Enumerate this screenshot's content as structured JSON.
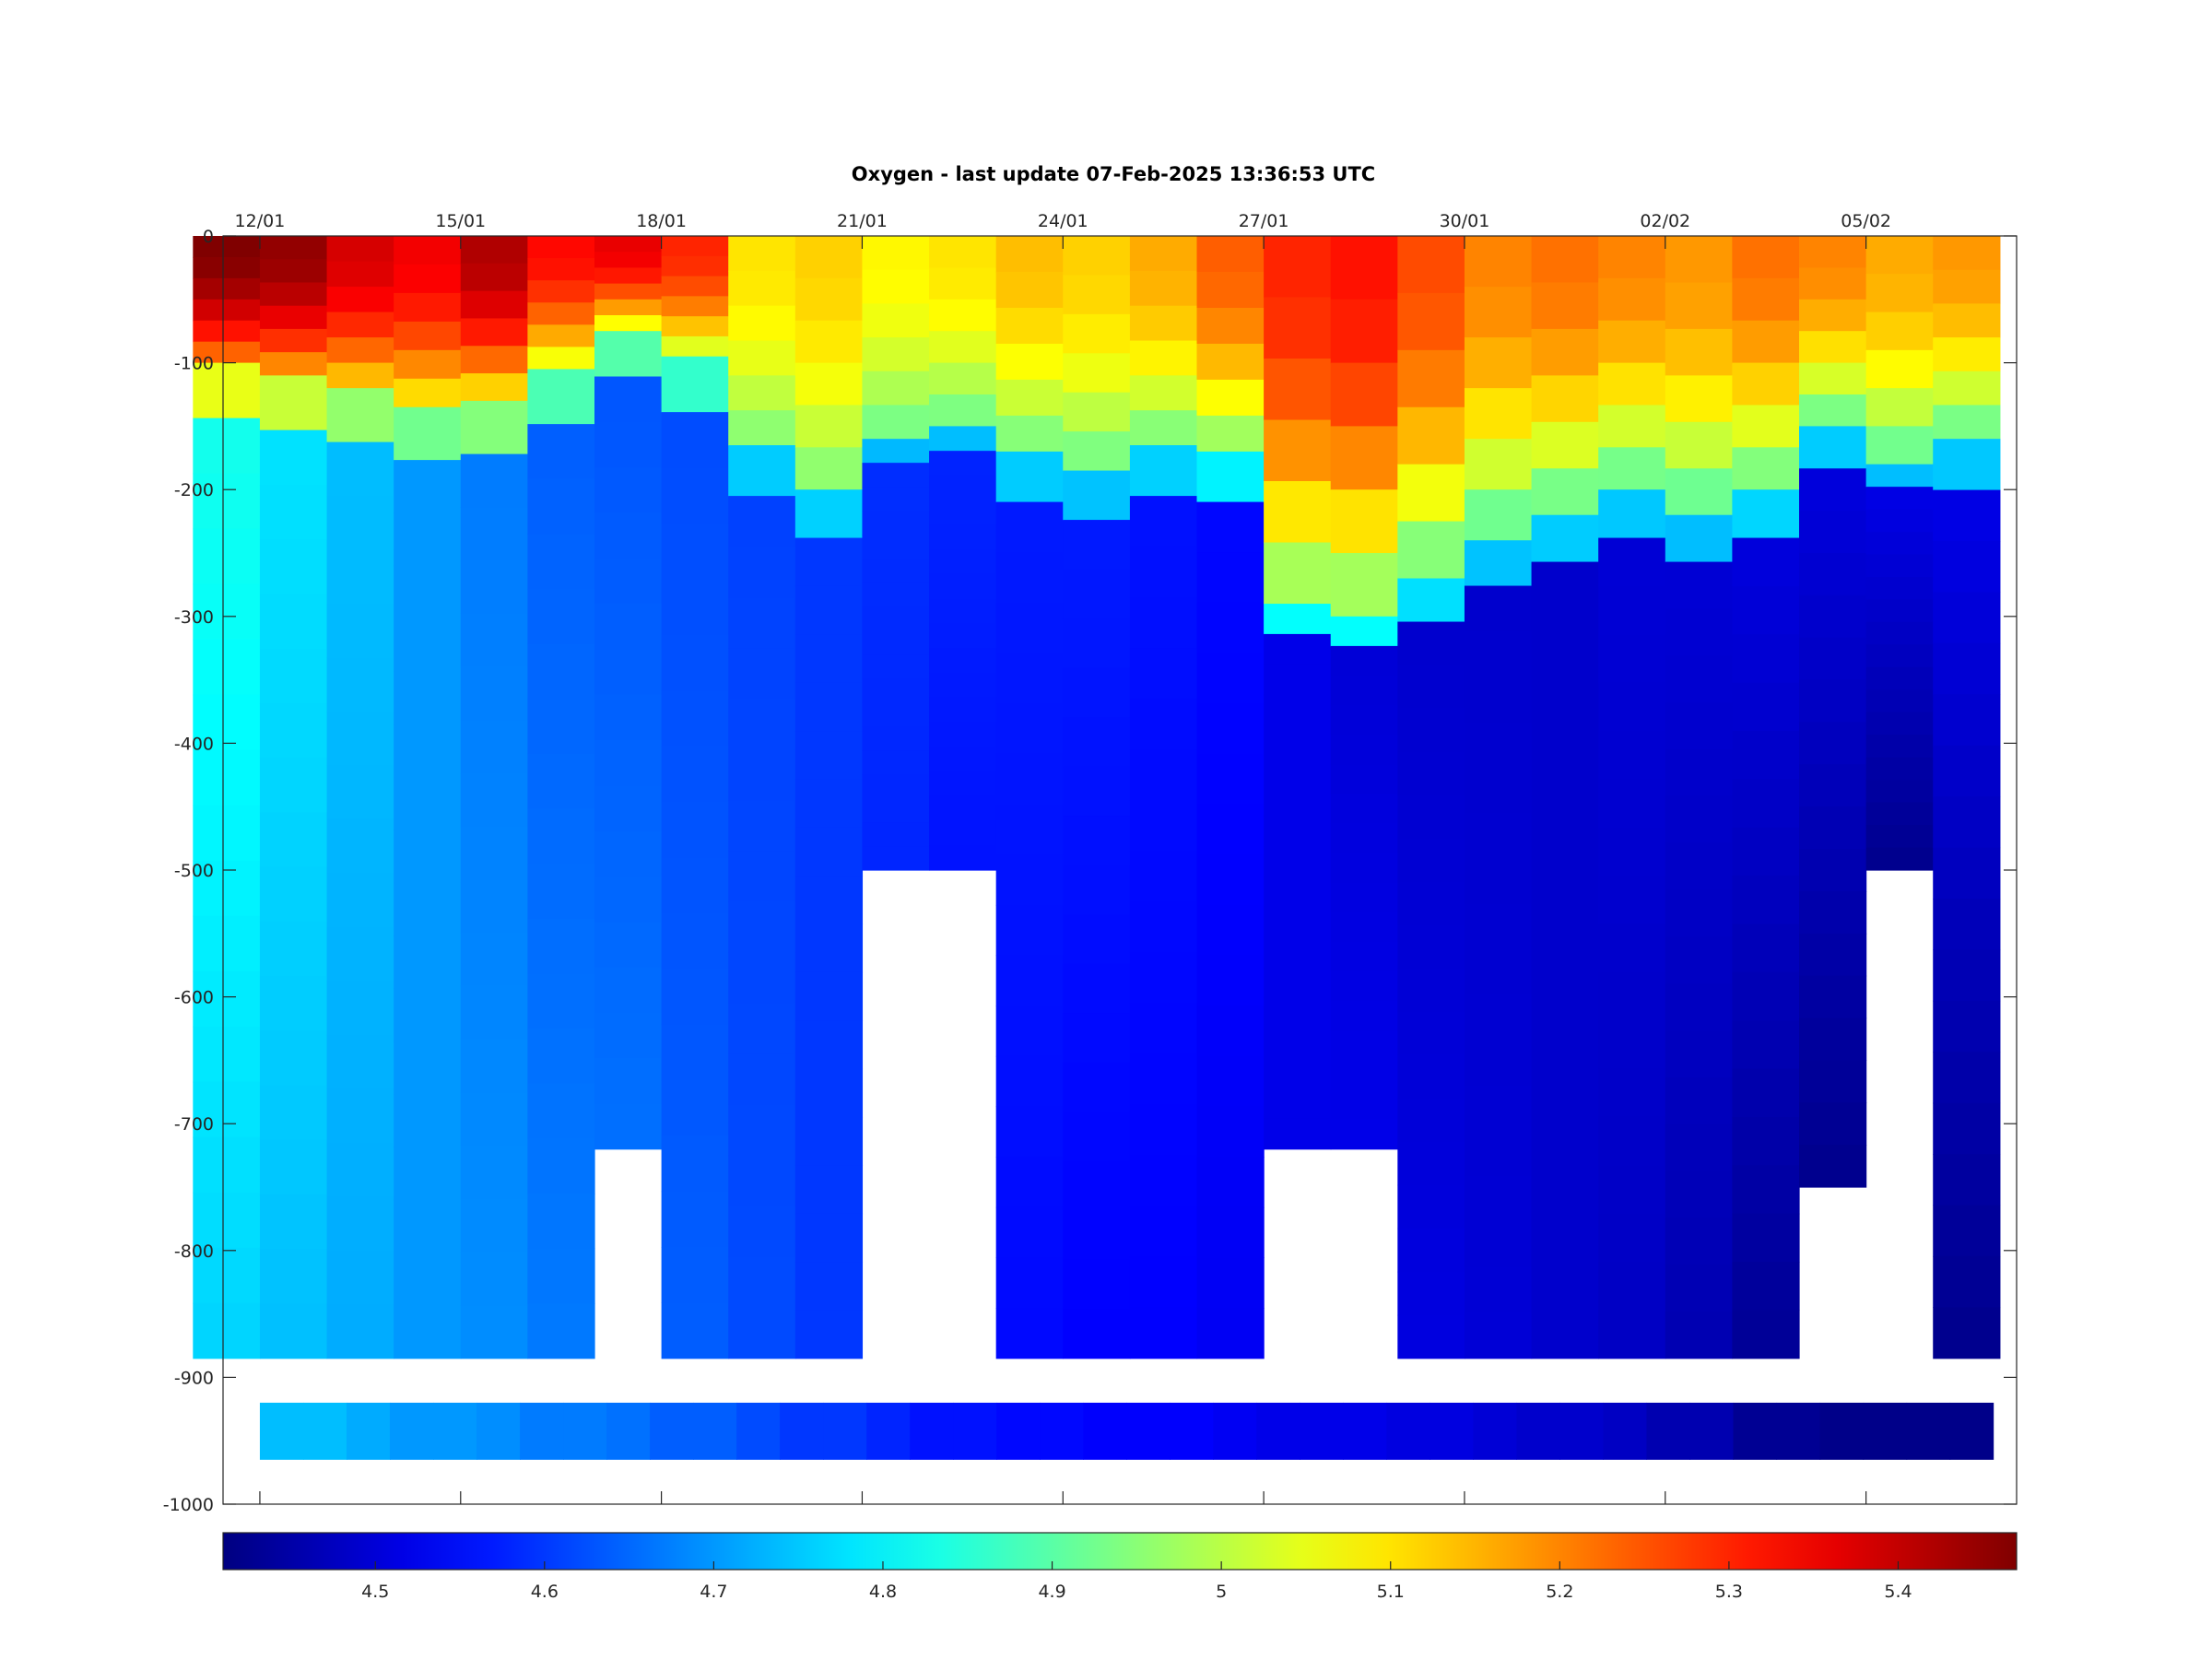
{
  "chart_data": {
    "type": "heatmap",
    "title": "Oxygen - last update 07-Feb-2025 13:36:53 UTC",
    "xlabel": "",
    "ylabel": "",
    "x_axis": {
      "position": "top",
      "tick_labels": [
        "12/01",
        "15/01",
        "18/01",
        "21/01",
        "24/01",
        "27/01",
        "30/01",
        "02/02",
        "05/02"
      ],
      "tick_days": [
        0,
        3,
        6,
        9,
        12,
        15,
        18,
        21,
        24
      ],
      "xlim_days": [
        -0.55,
        26.25
      ]
    },
    "y_axis": {
      "tick_labels": [
        "0",
        "-100",
        "-200",
        "-300",
        "-400",
        "-500",
        "-600",
        "-700",
        "-800",
        "-900",
        "-1000"
      ],
      "tick_values": [
        0,
        -100,
        -200,
        -300,
        -400,
        -500,
        -600,
        -700,
        -800,
        -900,
        -1000
      ],
      "ylim": [
        -1000,
        0
      ]
    },
    "colorbar": {
      "position": "bottom",
      "colormap": "jet",
      "clim": [
        4.41,
        5.47
      ],
      "tick_values": [
        4.5,
        4.6,
        4.7,
        4.8,
        4.9,
        5,
        5.1,
        5.2,
        5.3,
        5.4
      ],
      "tick_labels": [
        "4.5",
        "4.6",
        "4.7",
        "4.8",
        "4.9",
        "5",
        "5.1",
        "5.2",
        "5.3",
        "5.4"
      ]
    },
    "data_columns": [
      {
        "day": -0.5,
        "surface_value": 5.47,
        "mixed_depth": -100,
        "deep_value": 4.83,
        "max_depth": -885,
        "bottom_value": 4.76
      },
      {
        "day": 0.5,
        "surface_value": 5.45,
        "mixed_depth": -110,
        "deep_value": 4.78,
        "max_depth": -885,
        "bottom_value": 4.74
      },
      {
        "day": 1.5,
        "surface_value": 5.38,
        "mixed_depth": -120,
        "deep_value": 4.74,
        "max_depth": -885,
        "bottom_value": 4.72
      },
      {
        "day": 2.5,
        "surface_value": 5.35,
        "mixed_depth": -135,
        "deep_value": 4.7,
        "max_depth": -885,
        "bottom_value": 4.7
      },
      {
        "day": 3.5,
        "surface_value": 5.42,
        "mixed_depth": -130,
        "deep_value": 4.67,
        "max_depth": -885,
        "bottom_value": 4.69
      },
      {
        "day": 4.5,
        "surface_value": 5.33,
        "mixed_depth": -105,
        "deep_value": 4.64,
        "max_depth": -885,
        "bottom_value": 4.67
      },
      {
        "day": 5.5,
        "surface_value": 5.36,
        "mixed_depth": -75,
        "deep_value": 4.63,
        "max_depth": -720,
        "bottom_value": 4.66
      },
      {
        "day": 6.5,
        "surface_value": 5.3,
        "mixed_depth": -95,
        "deep_value": 4.62,
        "max_depth": -885,
        "bottom_value": 4.64
      },
      {
        "day": 7.5,
        "surface_value": 5.1,
        "mixed_depth": -165,
        "deep_value": 4.61,
        "max_depth": -885,
        "bottom_value": 4.62
      },
      {
        "day": 8.5,
        "surface_value": 5.12,
        "mixed_depth": -200,
        "deep_value": 4.6,
        "max_depth": -885,
        "bottom_value": 4.6
      },
      {
        "day": 9.5,
        "surface_value": 5.08,
        "mixed_depth": -160,
        "deep_value": 4.59,
        "max_depth": -500,
        "bottom_value": 4.58
      },
      {
        "day": 10.5,
        "surface_value": 5.1,
        "mixed_depth": -150,
        "deep_value": 4.58,
        "max_depth": -500,
        "bottom_value": 4.56
      },
      {
        "day": 11.5,
        "surface_value": 5.14,
        "mixed_depth": -170,
        "deep_value": 4.57,
        "max_depth": -885,
        "bottom_value": 4.55
      },
      {
        "day": 12.5,
        "surface_value": 5.12,
        "mixed_depth": -185,
        "deep_value": 4.57,
        "max_depth": -885,
        "bottom_value": 4.54
      },
      {
        "day": 13.5,
        "surface_value": 5.16,
        "mixed_depth": -165,
        "deep_value": 4.56,
        "max_depth": -885,
        "bottom_value": 4.54
      },
      {
        "day": 14.5,
        "surface_value": 5.24,
        "mixed_depth": -170,
        "deep_value": 4.55,
        "max_depth": -885,
        "bottom_value": 4.53
      },
      {
        "day": 15.5,
        "surface_value": 5.3,
        "mixed_depth": -290,
        "deep_value": 4.52,
        "max_depth": -720,
        "bottom_value": 4.52
      },
      {
        "day": 16.5,
        "surface_value": 5.32,
        "mixed_depth": -300,
        "deep_value": 4.5,
        "max_depth": -720,
        "bottom_value": 4.52
      },
      {
        "day": 17.5,
        "surface_value": 5.26,
        "mixed_depth": -270,
        "deep_value": 4.49,
        "max_depth": -885,
        "bottom_value": 4.51
      },
      {
        "day": 18.5,
        "surface_value": 5.2,
        "mixed_depth": -240,
        "deep_value": 4.49,
        "max_depth": -885,
        "bottom_value": 4.5
      },
      {
        "day": 19.5,
        "surface_value": 5.22,
        "mixed_depth": -220,
        "deep_value": 4.49,
        "max_depth": -885,
        "bottom_value": 4.49
      },
      {
        "day": 20.5,
        "surface_value": 5.2,
        "mixed_depth": -200,
        "deep_value": 4.5,
        "max_depth": -885,
        "bottom_value": 4.48
      },
      {
        "day": 21.5,
        "surface_value": 5.18,
        "mixed_depth": -220,
        "deep_value": 4.5,
        "max_depth": -885,
        "bottom_value": 4.46
      },
      {
        "day": 22.5,
        "surface_value": 5.22,
        "mixed_depth": -200,
        "deep_value": 4.51,
        "max_depth": -885,
        "bottom_value": 4.43
      },
      {
        "day": 23.5,
        "surface_value": 5.2,
        "mixed_depth": -150,
        "deep_value": 4.51,
        "max_depth": -750,
        "bottom_value": 4.42
      },
      {
        "day": 24.5,
        "surface_value": 5.16,
        "mixed_depth": -180,
        "deep_value": 4.52,
        "max_depth": -500,
        "bottom_value": 4.42
      },
      {
        "day": 25.5,
        "surface_value": 5.18,
        "mixed_depth": -160,
        "deep_value": 4.52,
        "max_depth": -885,
        "bottom_value": 4.42
      }
    ],
    "bottom_band": {
      "top_depth": -920,
      "bottom_depth": -965
    }
  }
}
